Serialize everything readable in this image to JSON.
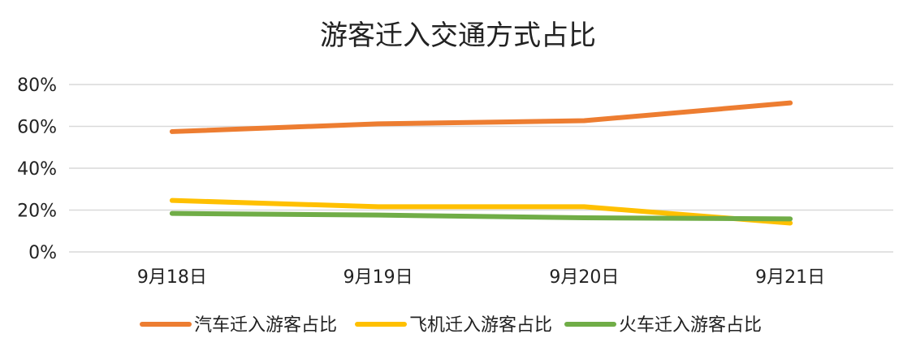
{
  "chart_data": {
    "type": "line",
    "title": "游客迁入交通方式占比",
    "categories": [
      "9月18日",
      "9月19日",
      "9月20日",
      "9月21日"
    ],
    "y_ticks": [
      "0%",
      "20%",
      "40%",
      "60%",
      "80%"
    ],
    "ylim": [
      0,
      80
    ],
    "y_unit": "%",
    "grid": true,
    "legend_position": "bottom",
    "series": [
      {
        "name": "汽车迁入游客占比",
        "values": [
          57.5,
          61.2,
          62.7,
          71.2
        ],
        "color": "#ED7D31"
      },
      {
        "name": "飞机迁入游客占比",
        "values": [
          24.6,
          21.6,
          21.6,
          13.8
        ],
        "color": "#FFC000"
      },
      {
        "name": "火车迁入游客占比",
        "values": [
          18.4,
          17.6,
          16.3,
          15.8
        ],
        "color": "#70AD47"
      }
    ],
    "colors": {
      "grid": "#D9D9D9",
      "text": "#222222"
    }
  }
}
